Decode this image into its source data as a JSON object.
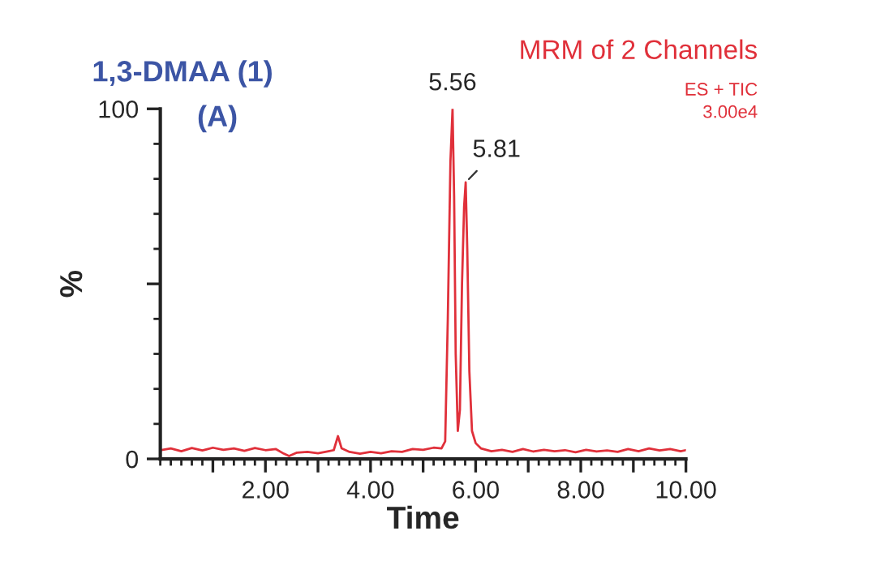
{
  "chart_data": {
    "type": "line",
    "title": "1,3-DMAA (1)",
    "xlabel": "Time",
    "ylabel": "%",
    "x": [
      0.0,
      0.2,
      0.4,
      0.6,
      0.8,
      1.0,
      1.2,
      1.4,
      1.6,
      1.8,
      2.0,
      2.2,
      2.35,
      2.45,
      2.6,
      2.8,
      3.0,
      3.2,
      3.3,
      3.38,
      3.45,
      3.6,
      3.8,
      4.0,
      4.2,
      4.4,
      4.6,
      4.8,
      5.0,
      5.2,
      5.35,
      5.42,
      5.47,
      5.52,
      5.56,
      5.59,
      5.62,
      5.66,
      5.7,
      5.74,
      5.78,
      5.81,
      5.84,
      5.88,
      5.93,
      6.0,
      6.1,
      6.3,
      6.5,
      6.7,
      6.9,
      7.1,
      7.3,
      7.5,
      7.7,
      7.9,
      8.1,
      8.3,
      8.5,
      8.7,
      8.9,
      9.1,
      9.3,
      9.5,
      9.7,
      9.9,
      10.0
    ],
    "series": [
      {
        "color": "#e0303a",
        "values": [
          2.5,
          3.0,
          2.2,
          3.1,
          2.4,
          3.2,
          2.6,
          3.0,
          2.3,
          3.1,
          2.5,
          2.8,
          1.5,
          0.8,
          1.8,
          2.0,
          1.6,
          2.2,
          2.5,
          6.5,
          3.0,
          2.0,
          1.5,
          2.0,
          1.6,
          2.2,
          2.0,
          2.8,
          2.6,
          3.2,
          3.0,
          5,
          40,
          85,
          100,
          75,
          30,
          8,
          14,
          50,
          72,
          79,
          60,
          25,
          8,
          4.5,
          3.0,
          2.2,
          2.6,
          2.0,
          2.8,
          2.1,
          2.6,
          2.2,
          2.5,
          1.9,
          2.6,
          2.1,
          2.4,
          2.0,
          2.8,
          2.2,
          3.0,
          2.4,
          2.8,
          2.2,
          2.5
        ]
      }
    ],
    "annotations": [
      {
        "text": "5.56",
        "x": 5.56,
        "y": 100
      },
      {
        "text": "5.81",
        "x": 5.81,
        "y": 79
      },
      "(A)",
      "MRM of 2 Channels",
      "ES + TIC",
      "3.00e4"
    ],
    "xlim": [
      0,
      10.0
    ],
    "xticks": [
      {
        "value": 1,
        "label": null
      },
      {
        "value": 2,
        "label": "2.00"
      },
      {
        "value": 3,
        "label": null
      },
      {
        "value": 4,
        "label": "4.00"
      },
      {
        "value": 5,
        "label": null
      },
      {
        "value": 6,
        "label": "6.00"
      },
      {
        "value": 7,
        "label": null
      },
      {
        "value": 8,
        "label": "8.00"
      },
      {
        "value": 9,
        "label": null
      },
      {
        "value": 10,
        "label": "10.00"
      }
    ],
    "ylim": [
      0,
      100
    ],
    "yticks": [
      0,
      {
        "value": 50,
        "label": null
      },
      100
    ],
    "grid": false,
    "legend": false,
    "marker": "none",
    "line_style": "solid"
  }
}
